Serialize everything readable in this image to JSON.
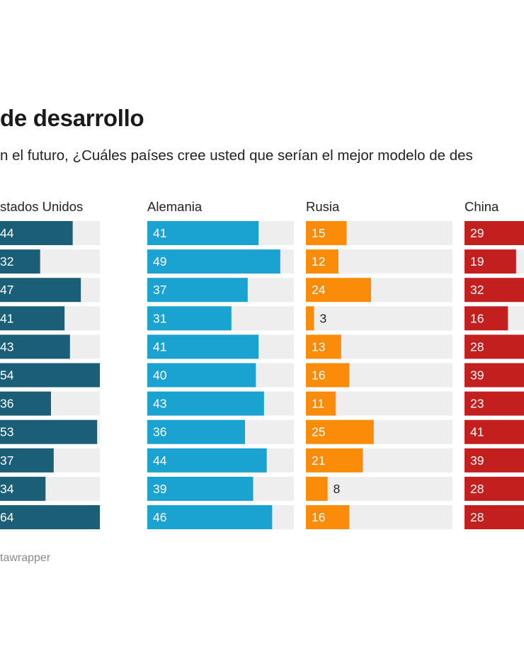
{
  "title": "de desarrollo",
  "subtitle": "n el futuro, ¿Cuáles países cree usted que serían el mejor modelo de des",
  "footer": "tawrapper",
  "colors": {
    "estados_unidos": "#1b5e78",
    "alemania": "#1aa2d1",
    "rusia": "#fa8c0a",
    "china": "#c41f1f",
    "track": "#eeeeee"
  },
  "chart_data": {
    "type": "bar",
    "max": 54,
    "panels": [
      {
        "name": "stados Unidos",
        "color": "#1b5e78",
        "labels": [
          "44",
          "32",
          "47",
          "41",
          "43",
          "54",
          "36",
          "53",
          "37",
          "34",
          "64"
        ],
        "values": [
          44,
          32,
          47,
          41,
          43,
          54,
          36,
          53,
          37,
          34,
          64
        ]
      },
      {
        "name": "Alemania",
        "color": "#1aa2d1",
        "labels": [
          "41",
          "49",
          "37",
          "31",
          "41",
          "40",
          "43",
          "36",
          "44",
          "39",
          "46"
        ],
        "values": [
          41,
          49,
          37,
          31,
          41,
          40,
          43,
          36,
          44,
          39,
          46
        ]
      },
      {
        "name": "Rusia",
        "color": "#fa8c0a",
        "labels": [
          "15",
          "12",
          "24",
          "3",
          "13",
          "16",
          "11",
          "25",
          "21",
          "8",
          "16"
        ],
        "values": [
          15,
          12,
          24,
          3,
          13,
          16,
          11,
          25,
          21,
          8,
          16
        ]
      },
      {
        "name": "China",
        "color": "#c41f1f",
        "labels": [
          "29",
          "19",
          "32",
          "16",
          "28",
          "39",
          "23",
          "41",
          "39",
          "28",
          "28"
        ],
        "values": [
          29,
          19,
          32,
          16,
          28,
          39,
          23,
          41,
          39,
          28,
          28
        ]
      }
    ]
  }
}
